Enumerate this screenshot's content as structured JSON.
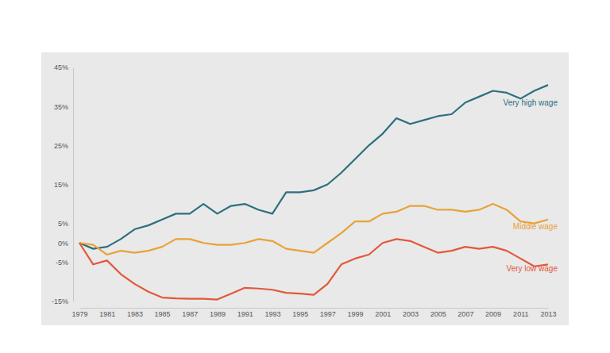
{
  "chart_data": {
    "type": "line",
    "x": [
      1979,
      1980,
      1981,
      1982,
      1983,
      1984,
      1985,
      1986,
      1987,
      1988,
      1989,
      1990,
      1991,
      1992,
      1993,
      1994,
      1995,
      1996,
      1997,
      1998,
      1999,
      2000,
      2001,
      2002,
      2003,
      2004,
      2005,
      2006,
      2007,
      2008,
      2009,
      2010,
      2011,
      2012,
      2013
    ],
    "series": [
      {
        "name": "Very high wage",
        "color": "#2e6f80",
        "values": [
          0,
          -1.5,
          -1,
          1,
          3.5,
          4.5,
          6,
          7.5,
          7.5,
          10,
          7.5,
          9.5,
          10,
          8.5,
          7.5,
          13,
          13,
          13.5,
          15,
          18,
          21.5,
          25,
          28,
          32,
          30.5,
          31.5,
          32.5,
          33,
          36,
          37.5,
          39,
          38.5,
          37,
          39,
          40.5
        ]
      },
      {
        "name": "Middle wage",
        "color": "#e8a23a",
        "values": [
          0,
          -0.5,
          -3,
          -2,
          -2.5,
          -2,
          -1,
          1,
          1,
          0,
          -0.5,
          -0.5,
          0,
          1,
          0.5,
          -1.5,
          -2,
          -2.5,
          0,
          2.5,
          5.5,
          5.5,
          7.5,
          8,
          9.5,
          9.5,
          8.5,
          8.5,
          8,
          8.5,
          10,
          8.5,
          5.5,
          5,
          6
        ]
      },
      {
        "name": "Very low wage",
        "color": "#e2583a",
        "values": [
          0,
          -5.5,
          -4.5,
          -8,
          -10.5,
          -12.5,
          -14,
          -14.2,
          -14.3,
          -14.3,
          -14.5,
          -13,
          -11.5,
          -11.7,
          -12,
          -12.8,
          -13,
          -13.3,
          -10.5,
          -5.5,
          -4,
          -3,
          0,
          1,
          0.5,
          -1,
          -2.5,
          -2,
          -1,
          -1.5,
          -1,
          -2,
          -4,
          -6,
          -5.5
        ]
      }
    ],
    "xlim": [
      1979,
      2013
    ],
    "xticks": [
      1979,
      1981,
      1983,
      1985,
      1987,
      1989,
      1991,
      1993,
      1995,
      1997,
      1999,
      2001,
      2003,
      2005,
      2007,
      2009,
      2011,
      2013
    ],
    "ylim": [
      -15,
      45
    ],
    "yticks": [
      {
        "value": -15,
        "label": "-15%"
      },
      {
        "value": -5,
        "label": "-5%"
      },
      {
        "value": 0,
        "label": "0%"
      },
      {
        "value": 5,
        "label": "5%"
      },
      {
        "value": 15,
        "label": "15%"
      },
      {
        "value": 25,
        "label": "25%"
      },
      {
        "value": 35,
        "label": "35%"
      },
      {
        "value": 45,
        "label": "45%"
      }
    ],
    "grid": false
  }
}
